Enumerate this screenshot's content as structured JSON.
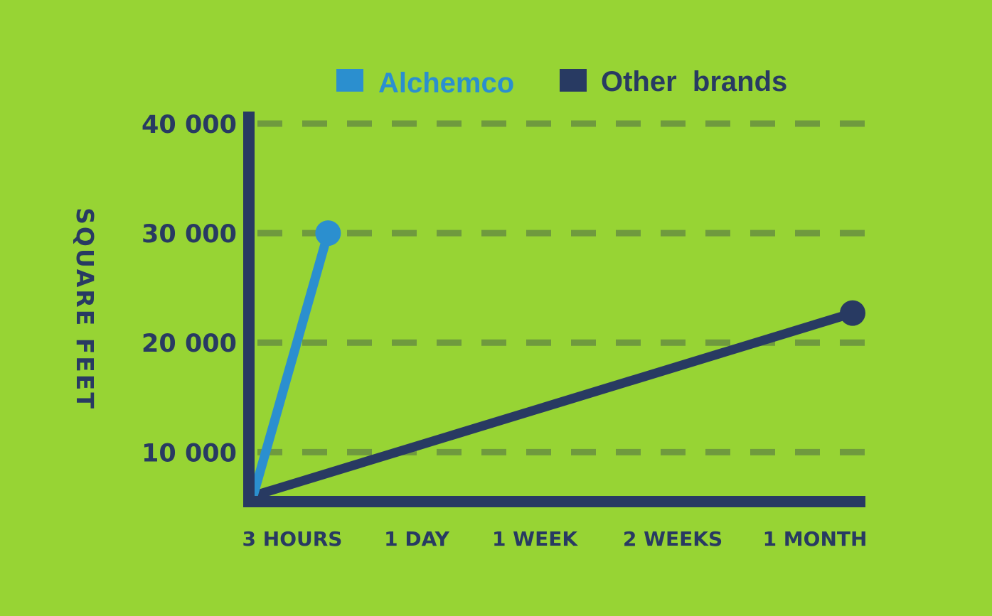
{
  "colors": {
    "background": "#97d434",
    "axis": "#283a62",
    "grid": "#6f9a3e",
    "alchemco": "#2b8fcf",
    "other": "#283a62"
  },
  "chart_data": {
    "type": "line",
    "title": "",
    "xlabel": "",
    "ylabel": "SQUARE FEET",
    "x_categories": [
      "3 HOURS",
      "1 DAY",
      "1 WEEK",
      "2 WEEKS",
      "1 MONTH"
    ],
    "y_ticks": [
      {
        "value": 10000,
        "label": "10 000"
      },
      {
        "value": 20000,
        "label": "20 000"
      },
      {
        "value": 30000,
        "label": "30 000"
      },
      {
        "value": 40000,
        "label": "40 000"
      }
    ],
    "ylim": [
      6000,
      40000
    ],
    "grid": "horizontal-dashed",
    "legend_position": "top",
    "series": [
      {
        "name": "Alchemco",
        "color_key": "alchemco",
        "points": [
          {
            "x_index": 0,
            "y": 6000
          },
          {
            "x_index": 0.5,
            "y": 30000
          }
        ]
      },
      {
        "name": "Other  brands",
        "color_key": "other",
        "points": [
          {
            "x_index": 0,
            "y": 6000
          },
          {
            "x_index": 4,
            "y": 22700
          }
        ]
      }
    ]
  }
}
